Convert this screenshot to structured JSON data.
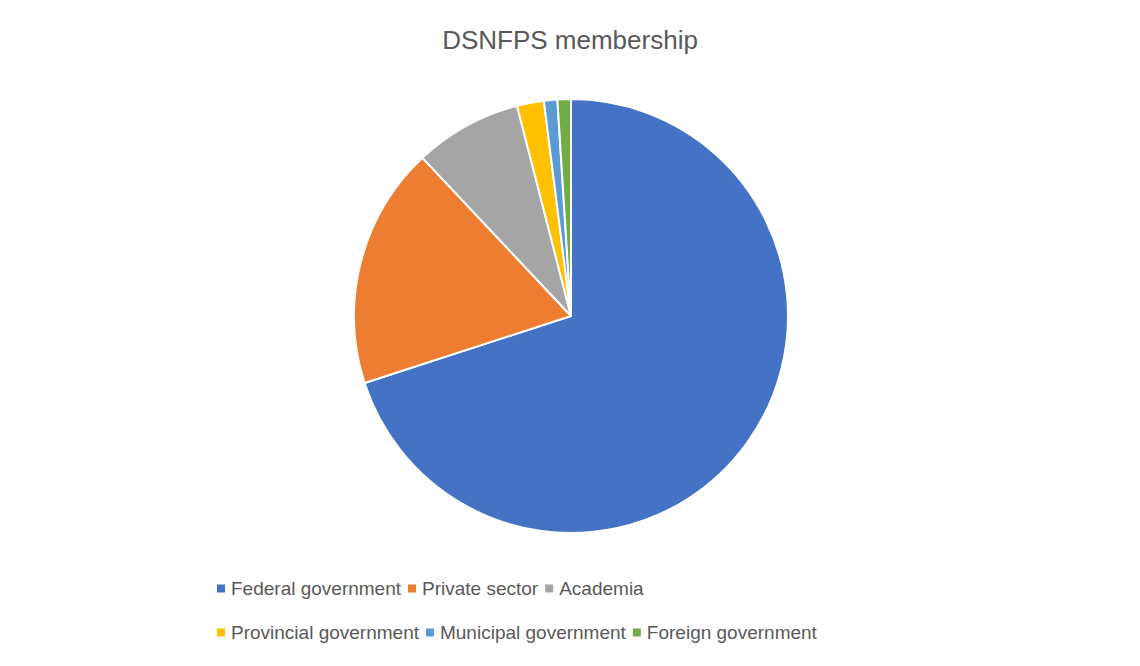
{
  "chart_data": {
    "type": "pie",
    "title": "DSNFPS membership",
    "categories": [
      "Federal government",
      "Private sector",
      "Academia",
      "Provincial government",
      "Municipal government",
      "Foreign government"
    ],
    "values": [
      70,
      18,
      8,
      2,
      1,
      1
    ],
    "colors": [
      "#4472c4",
      "#ed7d31",
      "#a5a5a5",
      "#ffc000",
      "#5b9bd5",
      "#70ad47"
    ],
    "legend": "bottom"
  }
}
